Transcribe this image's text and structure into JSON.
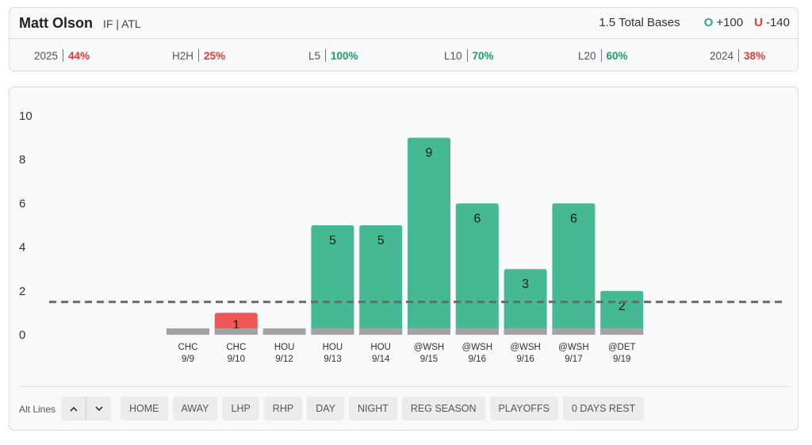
{
  "header": {
    "player_name": "Matt Olson",
    "player_meta": "IF | ATL",
    "prop": "1.5 Total Bases",
    "over": {
      "mark": "O",
      "odds": "+100"
    },
    "under": {
      "mark": "U",
      "odds": "-140"
    }
  },
  "stats": [
    {
      "label": "2025",
      "value": "44%",
      "tone": "red"
    },
    {
      "label": "H2H",
      "value": "25%",
      "tone": "red"
    },
    {
      "label": "L5",
      "value": "100%",
      "tone": "green"
    },
    {
      "label": "L10",
      "value": "70%",
      "tone": "green"
    },
    {
      "label": "L20",
      "value": "60%",
      "tone": "green"
    },
    {
      "label": "2024",
      "value": "38%",
      "tone": "red"
    }
  ],
  "chart_data": {
    "type": "bar",
    "ylim": [
      0,
      10
    ],
    "yticks": [
      0,
      2,
      4,
      6,
      8,
      10
    ],
    "line_value": 1.5,
    "categories": [
      {
        "opp": "CHC",
        "date": "9/9"
      },
      {
        "opp": "CHC",
        "date": "9/10"
      },
      {
        "opp": "HOU",
        "date": "9/12"
      },
      {
        "opp": "HOU",
        "date": "9/13"
      },
      {
        "opp": "HOU",
        "date": "9/14"
      },
      {
        "opp": "@WSH",
        "date": "9/15"
      },
      {
        "opp": "@WSH",
        "date": "9/16"
      },
      {
        "opp": "@WSH",
        "date": "9/16"
      },
      {
        "opp": "@WSH",
        "date": "9/17"
      },
      {
        "opp": "@DET",
        "date": "9/19"
      }
    ],
    "values": [
      0,
      1,
      0,
      5,
      5,
      9,
      6,
      3,
      6,
      2
    ],
    "colors": {
      "over": "#45b994",
      "under": "#ef5757",
      "base": "#a3a3a3",
      "line": "#6b6b6b"
    }
  },
  "alt_lines": {
    "label": "Alt Lines",
    "up_icon": "chevron-up-icon",
    "down_icon": "chevron-down-icon"
  },
  "filters": [
    "HOME",
    "AWAY",
    "LHP",
    "RHP",
    "DAY",
    "NIGHT",
    "REG SEASON",
    "PLAYOFFS",
    "0 DAYS REST"
  ]
}
